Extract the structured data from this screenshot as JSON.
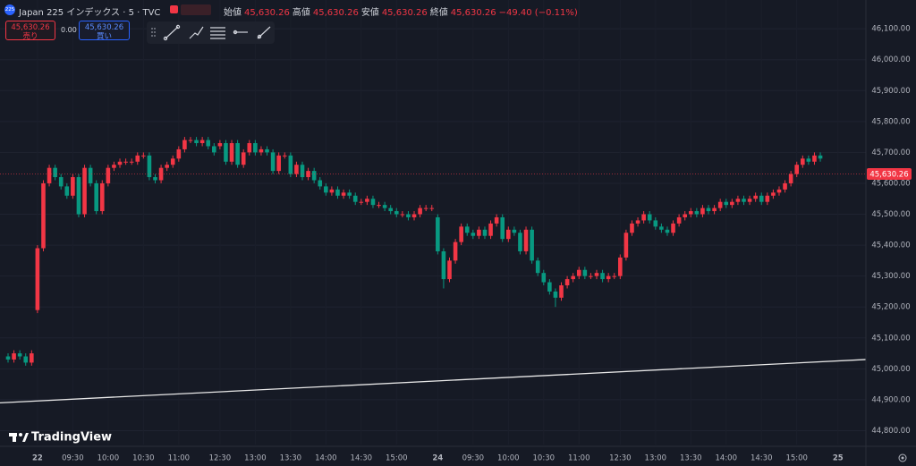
{
  "header": {
    "symbol_badge": "225",
    "symbol": "Japan 225 インデックス · 5 · TVC",
    "ohlc": [
      {
        "label": "始値",
        "value": "45,630.26"
      },
      {
        "label": "高値",
        "value": "45,630.26"
      },
      {
        "label": "安値",
        "value": "45,630.26"
      },
      {
        "label": "終値",
        "value": "45,630.26"
      }
    ],
    "change": "−49.40 (−0.11%)"
  },
  "trade": {
    "sell_price": "45,630.26",
    "sell_label": "売り",
    "spread": "0.00",
    "buy_price": "45,630.26",
    "buy_label": "買い"
  },
  "brand": "TradingView",
  "chart_data": {
    "type": "candlestick",
    "up_color": "#f23645",
    "down_color": "#089981",
    "grid": true,
    "categories": [
      null,
      null,
      null,
      null,
      null,
      "22",
      null,
      null,
      null,
      null,
      null,
      "09:30",
      null,
      null,
      null,
      null,
      null,
      "10:00",
      null,
      null,
      null,
      null,
      null,
      "10:30",
      null,
      null,
      null,
      null,
      null,
      "11:00",
      null,
      null,
      null,
      null,
      null,
      null,
      "12:30",
      null,
      null,
      null,
      null,
      null,
      "13:00",
      null,
      null,
      null,
      null,
      null,
      "13:30",
      null,
      null,
      null,
      null,
      null,
      "14:00",
      null,
      null,
      null,
      null,
      null,
      "14:30",
      null,
      null,
      null,
      null,
      null,
      "15:00",
      null,
      null,
      null,
      null,
      null,
      null,
      "24",
      null,
      null,
      null,
      null,
      null,
      "09:30",
      null,
      null,
      null,
      null,
      null,
      "10:00",
      null,
      null,
      null,
      null,
      null,
      "10:30",
      null,
      null,
      null,
      null,
      null,
      "11:00",
      null,
      null,
      null,
      null,
      null,
      null,
      "12:30",
      null,
      null,
      null,
      null,
      null,
      "13:00",
      null,
      null,
      null,
      null,
      null,
      "13:30",
      null,
      null,
      null,
      null,
      null,
      "14:00",
      null,
      null,
      null,
      null,
      null,
      "14:30",
      null,
      null,
      null,
      null,
      null,
      "15:00",
      null,
      null,
      null,
      null,
      null,
      null,
      "25"
    ],
    "open": [
      45040,
      45030,
      45050,
      45040,
      45020,
      45190,
      45390,
      45600,
      45650,
      45620,
      45590,
      45560,
      45620,
      45500,
      45650,
      45600,
      45510,
      45600,
      45650,
      45660,
      45670,
      45670,
      45670,
      45690,
      45690,
      45620,
      45610,
      45650,
      45660,
      45680,
      45710,
      45740,
      45740,
      45730,
      45740,
      45720,
      45720,
      45730,
      45670,
      45730,
      45660,
      45700,
      45730,
      45700,
      45710,
      45700,
      45640,
      45690,
      45690,
      45630,
      45660,
      45620,
      45640,
      45610,
      45590,
      45570,
      45580,
      45560,
      45570,
      45560,
      45540,
      45540,
      45550,
      45530,
      45530,
      45520,
      45510,
      45500,
      45500,
      45490,
      45500,
      45520,
      45520,
      45490,
      45380,
      45290,
      45350,
      45410,
      45460,
      45440,
      45430,
      45450,
      45430,
      45470,
      45490,
      45420,
      45450,
      45440,
      45380,
      45450,
      45350,
      45310,
      45280,
      45250,
      45230,
      45270,
      45290,
      45300,
      45320,
      45300,
      45300,
      45310,
      45290,
      45300,
      45300,
      45360,
      45440,
      45470,
      45480,
      45500,
      45480,
      45460,
      45450,
      45440,
      45470,
      45490,
      45500,
      45510,
      45500,
      45520,
      45510,
      45520,
      45540,
      45530,
      45540,
      45550,
      45540,
      45550,
      45560,
      45540,
      45560,
      45570,
      45580,
      45600,
      45630,
      45660,
      45680,
      45670,
      45690,
      null,
      null,
      null
    ],
    "high": [
      45050,
      45060,
      45060,
      45050,
      45060,
      45400,
      45610,
      45660,
      45660,
      45630,
      45600,
      45630,
      45630,
      45660,
      45660,
      45610,
      45610,
      45660,
      45670,
      45680,
      45680,
      45680,
      45700,
      45700,
      45700,
      45630,
      45660,
      45670,
      45690,
      45720,
      45750,
      45750,
      45750,
      45750,
      45750,
      45730,
      45740,
      45740,
      45740,
      45740,
      45710,
      45740,
      45740,
      45720,
      45720,
      45710,
      45700,
      45700,
      45700,
      45670,
      45670,
      45650,
      45650,
      45620,
      45600,
      45590,
      45590,
      45580,
      45580,
      45570,
      45550,
      45560,
      45560,
      45540,
      45540,
      45530,
      45520,
      45510,
      45510,
      45510,
      45530,
      45530,
      45530,
      45500,
      45390,
      45360,
      45420,
      45470,
      45470,
      45450,
      45460,
      45460,
      45480,
      45500,
      45500,
      45460,
      45460,
      45450,
      45460,
      45460,
      45360,
      45320,
      45290,
      45260,
      45280,
      45300,
      45310,
      45330,
      45330,
      45310,
      45320,
      45320,
      45310,
      45310,
      45370,
      45450,
      45480,
      45490,
      45510,
      45510,
      45490,
      45470,
      45460,
      45480,
      45500,
      45510,
      45520,
      45520,
      45530,
      45530,
      45530,
      45550,
      45550,
      45550,
      45560,
      45560,
      45560,
      45570,
      45570,
      45570,
      45580,
      45590,
      45610,
      45640,
      45670,
      45690,
      45690,
      45700,
      45700,
      null,
      null,
      null
    ],
    "low": [
      45020,
      45020,
      45030,
      45010,
      45010,
      45180,
      45380,
      45590,
      45610,
      45580,
      45550,
      45550,
      45490,
      45490,
      45590,
      45500,
      45500,
      45590,
      45640,
      45650,
      45660,
      45660,
      45660,
      45680,
      45610,
      45600,
      45600,
      45640,
      45650,
      45670,
      45700,
      45730,
      45720,
      45720,
      45710,
      45690,
      45710,
      45660,
      45660,
      45650,
      45650,
      45690,
      45690,
      45690,
      45690,
      45630,
      45630,
      45680,
      45620,
      45620,
      45610,
      45610,
      45600,
      45580,
      45560,
      45560,
      45550,
      45550,
      45550,
      45530,
      45530,
      45530,
      45520,
      45520,
      45510,
      45500,
      45490,
      45490,
      45480,
      45480,
      45490,
      45510,
      45510,
      45370,
      45260,
      45280,
      45340,
      45400,
      45430,
      45420,
      45420,
      45420,
      45420,
      45460,
      45410,
      45410,
      45430,
      45370,
      45370,
      45340,
      45300,
      45270,
      45240,
      45200,
      45220,
      45260,
      45280,
      45290,
      45290,
      45290,
      45290,
      45280,
      45280,
      45290,
      45290,
      45350,
      45430,
      45460,
      45470,
      45470,
      45450,
      45440,
      45430,
      45430,
      45460,
      45480,
      45490,
      45490,
      45490,
      45500,
      45500,
      45510,
      45520,
      45520,
      45530,
      45530,
      45530,
      45540,
      45530,
      45530,
      45550,
      45560,
      45570,
      45590,
      45620,
      45650,
      45660,
      45660,
      45670,
      null,
      null,
      null
    ],
    "close": [
      45030,
      45050,
      45040,
      45020,
      45050,
      45390,
      45600,
      45650,
      45620,
      45590,
      45560,
      45620,
      45500,
      45650,
      45600,
      45510,
      45600,
      45650,
      45660,
      45670,
      45670,
      45670,
      45690,
      45690,
      45620,
      45610,
      45650,
      45660,
      45680,
      45710,
      45740,
      45740,
      45730,
      45740,
      45720,
      45700,
      45730,
      45670,
      45730,
      45660,
      45700,
      45730,
      45700,
      45710,
      45700,
      45640,
      45690,
      45690,
      45630,
      45660,
      45620,
      45640,
      45610,
      45590,
      45570,
      45580,
      45560,
      45570,
      45560,
      45540,
      45540,
      45550,
      45530,
      45530,
      45520,
      45510,
      45500,
      45500,
      45490,
      45500,
      45520,
      45520,
      45520,
      45380,
      45290,
      45350,
      45410,
      45460,
      45440,
      45430,
      45450,
      45430,
      45470,
      45490,
      45420,
      45450,
      45440,
      45380,
      45450,
      45350,
      45310,
      45280,
      45250,
      45230,
      45270,
      45290,
      45300,
      45320,
      45300,
      45300,
      45310,
      45290,
      45300,
      45300,
      45360,
      45440,
      45470,
      45480,
      45500,
      45480,
      45460,
      45450,
      45440,
      45470,
      45490,
      45500,
      45510,
      45500,
      45520,
      45510,
      45520,
      45540,
      45530,
      45540,
      45550,
      45540,
      45550,
      45560,
      45540,
      45560,
      45570,
      45580,
      45600,
      45630,
      45660,
      45680,
      45670,
      45690,
      45680,
      null,
      null,
      null
    ],
    "trend_line": [
      44890,
      45030
    ],
    "last_price": {
      "value": 45630.26,
      "label": "45,630.26"
    },
    "ylim": [
      44755,
      46193
    ],
    "yticks": [
      {
        "value": 44800,
        "label": "44,800.00"
      },
      {
        "value": 44900,
        "label": "44,900.00"
      },
      {
        "value": 45000,
        "label": "45,000.00"
      },
      {
        "value": 45100,
        "label": "45,100.00"
      },
      {
        "value": 45200,
        "label": "45,200.00"
      },
      {
        "value": 45300,
        "label": "45,300.00"
      },
      {
        "value": 45400,
        "label": "45,400.00"
      },
      {
        "value": 45500,
        "label": "45,500.00"
      },
      {
        "value": 45600,
        "label": "45,600.00"
      },
      {
        "value": 45700,
        "label": "45,700.00"
      },
      {
        "value": 45800,
        "label": "45,800.00"
      },
      {
        "value": 45900,
        "label": "45,900.00"
      },
      {
        "value": 46000,
        "label": "46,000.00"
      },
      {
        "value": 46100,
        "label": "46,100.00"
      }
    ]
  }
}
